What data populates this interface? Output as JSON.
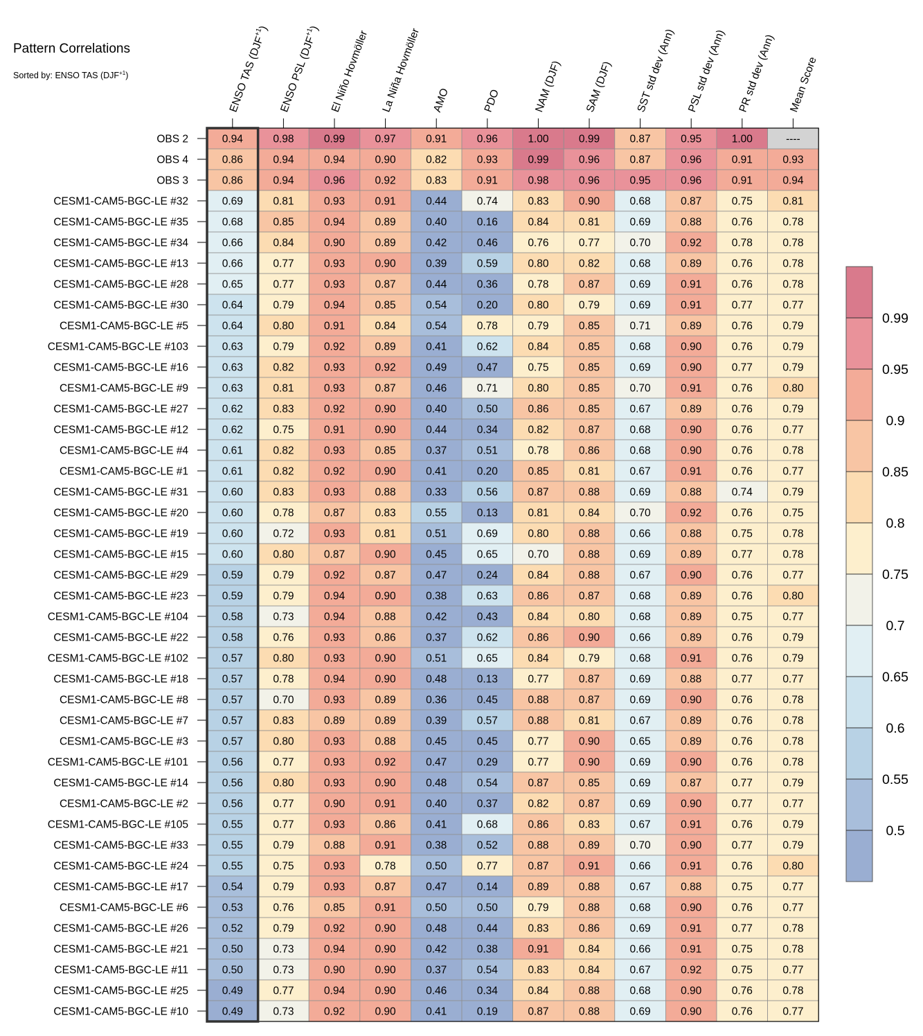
{
  "title": "Pattern Correlations",
  "subtitle": {
    "prefix": "Sorted by: ENSO TAS (DJF",
    "sup": "+1",
    "suffix": ")"
  },
  "chart_data": {
    "type": "heatmap",
    "columns": [
      {
        "label": "ENSO TAS (DJF",
        "sup": "+1",
        "suffix": ")"
      },
      {
        "label": "ENSO PSL (DJF",
        "sup": "+1",
        "suffix": ")"
      },
      {
        "label": "El Niño Hovmöller"
      },
      {
        "label": "La Niña Hovmöller"
      },
      {
        "label": "AMO"
      },
      {
        "label": "PDO"
      },
      {
        "label": "NAM (DJF)"
      },
      {
        "label": "SAM (DJF)"
      },
      {
        "label": "SST std dev (Ann)"
      },
      {
        "label": "PSL std dev (Ann)"
      },
      {
        "label": "PR std dev (Ann)"
      },
      {
        "label": "Mean Score"
      }
    ],
    "highlighted_column": 0,
    "missing_label": "----",
    "rows": [
      {
        "name": "OBS 2",
        "values": [
          "0.94",
          "0.98",
          "0.99",
          "0.97",
          "0.91",
          "0.96",
          "1.00",
          "0.99",
          "0.87",
          "0.95",
          "1.00",
          null
        ]
      },
      {
        "name": "OBS 4",
        "values": [
          "0.86",
          "0.94",
          "0.94",
          "0.90",
          "0.82",
          "0.93",
          "0.99",
          "0.96",
          "0.87",
          "0.96",
          "0.91",
          "0.93"
        ]
      },
      {
        "name": "OBS 3",
        "values": [
          "0.86",
          "0.94",
          "0.96",
          "0.92",
          "0.83",
          "0.91",
          "0.98",
          "0.96",
          "0.95",
          "0.96",
          "0.91",
          "0.94"
        ]
      },
      {
        "name": "CESM1-CAM5-BGC-LE #32",
        "values": [
          "0.69",
          "0.81",
          "0.93",
          "0.91",
          "0.44",
          "0.74",
          "0.83",
          "0.90",
          "0.68",
          "0.87",
          "0.75",
          "0.81"
        ]
      },
      {
        "name": "CESM1-CAM5-BGC-LE #35",
        "values": [
          "0.68",
          "0.85",
          "0.94",
          "0.89",
          "0.40",
          "0.16",
          "0.84",
          "0.81",
          "0.69",
          "0.88",
          "0.76",
          "0.78"
        ]
      },
      {
        "name": "CESM1-CAM5-BGC-LE #34",
        "values": [
          "0.66",
          "0.84",
          "0.90",
          "0.89",
          "0.42",
          "0.46",
          "0.76",
          "0.77",
          "0.70",
          "0.92",
          "0.78",
          "0.78"
        ]
      },
      {
        "name": "CESM1-CAM5-BGC-LE #13",
        "values": [
          "0.66",
          "0.77",
          "0.93",
          "0.90",
          "0.39",
          "0.59",
          "0.80",
          "0.82",
          "0.68",
          "0.89",
          "0.76",
          "0.78"
        ]
      },
      {
        "name": "CESM1-CAM5-BGC-LE #28",
        "values": [
          "0.65",
          "0.77",
          "0.93",
          "0.87",
          "0.44",
          "0.36",
          "0.78",
          "0.87",
          "0.69",
          "0.91",
          "0.76",
          "0.78"
        ]
      },
      {
        "name": "CESM1-CAM5-BGC-LE #30",
        "values": [
          "0.64",
          "0.79",
          "0.94",
          "0.85",
          "0.54",
          "0.20",
          "0.80",
          "0.79",
          "0.69",
          "0.91",
          "0.77",
          "0.77"
        ]
      },
      {
        "name": "CESM1-CAM5-BGC-LE #5",
        "values": [
          "0.64",
          "0.80",
          "0.91",
          "0.84",
          "0.54",
          "0.78",
          "0.79",
          "0.85",
          "0.71",
          "0.89",
          "0.76",
          "0.79"
        ]
      },
      {
        "name": "CESM1-CAM5-BGC-LE #103",
        "values": [
          "0.63",
          "0.79",
          "0.92",
          "0.89",
          "0.41",
          "0.62",
          "0.84",
          "0.85",
          "0.68",
          "0.90",
          "0.76",
          "0.79"
        ]
      },
      {
        "name": "CESM1-CAM5-BGC-LE #16",
        "values": [
          "0.63",
          "0.82",
          "0.93",
          "0.92",
          "0.49",
          "0.47",
          "0.75",
          "0.85",
          "0.69",
          "0.90",
          "0.77",
          "0.79"
        ]
      },
      {
        "name": "CESM1-CAM5-BGC-LE #9",
        "values": [
          "0.63",
          "0.81",
          "0.93",
          "0.87",
          "0.46",
          "0.71",
          "0.80",
          "0.85",
          "0.70",
          "0.91",
          "0.76",
          "0.80"
        ]
      },
      {
        "name": "CESM1-CAM5-BGC-LE #27",
        "values": [
          "0.62",
          "0.83",
          "0.92",
          "0.90",
          "0.40",
          "0.50",
          "0.86",
          "0.85",
          "0.67",
          "0.89",
          "0.76",
          "0.79"
        ]
      },
      {
        "name": "CESM1-CAM5-BGC-LE #12",
        "values": [
          "0.62",
          "0.75",
          "0.91",
          "0.90",
          "0.44",
          "0.34",
          "0.82",
          "0.87",
          "0.68",
          "0.90",
          "0.76",
          "0.77"
        ]
      },
      {
        "name": "CESM1-CAM5-BGC-LE #4",
        "values": [
          "0.61",
          "0.82",
          "0.93",
          "0.85",
          "0.37",
          "0.51",
          "0.78",
          "0.86",
          "0.68",
          "0.90",
          "0.76",
          "0.78"
        ]
      },
      {
        "name": "CESM1-CAM5-BGC-LE #1",
        "values": [
          "0.61",
          "0.82",
          "0.92",
          "0.90",
          "0.41",
          "0.20",
          "0.85",
          "0.81",
          "0.67",
          "0.91",
          "0.76",
          "0.77"
        ]
      },
      {
        "name": "CESM1-CAM5-BGC-LE #31",
        "values": [
          "0.60",
          "0.83",
          "0.93",
          "0.88",
          "0.33",
          "0.56",
          "0.87",
          "0.88",
          "0.69",
          "0.88",
          "0.74",
          "0.79"
        ]
      },
      {
        "name": "CESM1-CAM5-BGC-LE #20",
        "values": [
          "0.60",
          "0.78",
          "0.87",
          "0.83",
          "0.55",
          "0.13",
          "0.81",
          "0.84",
          "0.70",
          "0.92",
          "0.76",
          "0.75"
        ]
      },
      {
        "name": "CESM1-CAM5-BGC-LE #19",
        "values": [
          "0.60",
          "0.72",
          "0.93",
          "0.81",
          "0.51",
          "0.69",
          "0.80",
          "0.88",
          "0.66",
          "0.88",
          "0.75",
          "0.78"
        ]
      },
      {
        "name": "CESM1-CAM5-BGC-LE #15",
        "values": [
          "0.60",
          "0.80",
          "0.87",
          "0.90",
          "0.45",
          "0.65",
          "0.70",
          "0.88",
          "0.69",
          "0.89",
          "0.77",
          "0.78"
        ]
      },
      {
        "name": "CESM1-CAM5-BGC-LE #29",
        "values": [
          "0.59",
          "0.79",
          "0.92",
          "0.87",
          "0.47",
          "0.24",
          "0.84",
          "0.88",
          "0.67",
          "0.90",
          "0.76",
          "0.77"
        ]
      },
      {
        "name": "CESM1-CAM5-BGC-LE #23",
        "values": [
          "0.59",
          "0.79",
          "0.94",
          "0.90",
          "0.38",
          "0.63",
          "0.86",
          "0.87",
          "0.68",
          "0.89",
          "0.76",
          "0.80"
        ]
      },
      {
        "name": "CESM1-CAM5-BGC-LE #104",
        "values": [
          "0.58",
          "0.73",
          "0.94",
          "0.88",
          "0.42",
          "0.43",
          "0.84",
          "0.80",
          "0.68",
          "0.89",
          "0.75",
          "0.77"
        ]
      },
      {
        "name": "CESM1-CAM5-BGC-LE #22",
        "values": [
          "0.58",
          "0.76",
          "0.93",
          "0.86",
          "0.37",
          "0.62",
          "0.86",
          "0.90",
          "0.66",
          "0.89",
          "0.76",
          "0.79"
        ]
      },
      {
        "name": "CESM1-CAM5-BGC-LE #102",
        "values": [
          "0.57",
          "0.80",
          "0.93",
          "0.90",
          "0.51",
          "0.65",
          "0.84",
          "0.79",
          "0.68",
          "0.91",
          "0.76",
          "0.79"
        ]
      },
      {
        "name": "CESM1-CAM5-BGC-LE #18",
        "values": [
          "0.57",
          "0.78",
          "0.94",
          "0.90",
          "0.48",
          "0.13",
          "0.77",
          "0.87",
          "0.69",
          "0.88",
          "0.77",
          "0.77"
        ]
      },
      {
        "name": "CESM1-CAM5-BGC-LE #8",
        "values": [
          "0.57",
          "0.70",
          "0.93",
          "0.89",
          "0.36",
          "0.45",
          "0.88",
          "0.87",
          "0.69",
          "0.90",
          "0.76",
          "0.78"
        ]
      },
      {
        "name": "CESM1-CAM5-BGC-LE #7",
        "values": [
          "0.57",
          "0.83",
          "0.89",
          "0.89",
          "0.39",
          "0.57",
          "0.88",
          "0.81",
          "0.67",
          "0.89",
          "0.76",
          "0.78"
        ]
      },
      {
        "name": "CESM1-CAM5-BGC-LE #3",
        "values": [
          "0.57",
          "0.80",
          "0.93",
          "0.88",
          "0.45",
          "0.45",
          "0.77",
          "0.90",
          "0.65",
          "0.89",
          "0.76",
          "0.78"
        ]
      },
      {
        "name": "CESM1-CAM5-BGC-LE #101",
        "values": [
          "0.56",
          "0.77",
          "0.93",
          "0.92",
          "0.47",
          "0.29",
          "0.77",
          "0.90",
          "0.69",
          "0.90",
          "0.76",
          "0.78"
        ]
      },
      {
        "name": "CESM1-CAM5-BGC-LE #14",
        "values": [
          "0.56",
          "0.80",
          "0.93",
          "0.90",
          "0.48",
          "0.54",
          "0.87",
          "0.85",
          "0.69",
          "0.87",
          "0.77",
          "0.79"
        ]
      },
      {
        "name": "CESM1-CAM5-BGC-LE #2",
        "values": [
          "0.56",
          "0.77",
          "0.90",
          "0.91",
          "0.40",
          "0.37",
          "0.82",
          "0.87",
          "0.69",
          "0.90",
          "0.77",
          "0.77"
        ]
      },
      {
        "name": "CESM1-CAM5-BGC-LE #105",
        "values": [
          "0.55",
          "0.77",
          "0.93",
          "0.86",
          "0.41",
          "0.68",
          "0.86",
          "0.83",
          "0.67",
          "0.91",
          "0.76",
          "0.79"
        ]
      },
      {
        "name": "CESM1-CAM5-BGC-LE #33",
        "values": [
          "0.55",
          "0.79",
          "0.88",
          "0.91",
          "0.38",
          "0.52",
          "0.88",
          "0.89",
          "0.70",
          "0.90",
          "0.77",
          "0.79"
        ]
      },
      {
        "name": "CESM1-CAM5-BGC-LE #24",
        "values": [
          "0.55",
          "0.75",
          "0.93",
          "0.78",
          "0.50",
          "0.77",
          "0.87",
          "0.91",
          "0.66",
          "0.91",
          "0.76",
          "0.80"
        ]
      },
      {
        "name": "CESM1-CAM5-BGC-LE #17",
        "values": [
          "0.54",
          "0.79",
          "0.93",
          "0.87",
          "0.47",
          "0.14",
          "0.89",
          "0.88",
          "0.67",
          "0.88",
          "0.75",
          "0.77"
        ]
      },
      {
        "name": "CESM1-CAM5-BGC-LE #6",
        "values": [
          "0.53",
          "0.76",
          "0.85",
          "0.91",
          "0.50",
          "0.50",
          "0.79",
          "0.88",
          "0.68",
          "0.90",
          "0.76",
          "0.77"
        ]
      },
      {
        "name": "CESM1-CAM5-BGC-LE #26",
        "values": [
          "0.52",
          "0.79",
          "0.92",
          "0.90",
          "0.48",
          "0.44",
          "0.83",
          "0.86",
          "0.69",
          "0.91",
          "0.77",
          "0.78"
        ]
      },
      {
        "name": "CESM1-CAM5-BGC-LE #21",
        "values": [
          "0.50",
          "0.73",
          "0.94",
          "0.90",
          "0.42",
          "0.38",
          "0.91",
          "0.84",
          "0.66",
          "0.91",
          "0.75",
          "0.78"
        ]
      },
      {
        "name": "CESM1-CAM5-BGC-LE #11",
        "values": [
          "0.50",
          "0.73",
          "0.90",
          "0.90",
          "0.37",
          "0.54",
          "0.83",
          "0.84",
          "0.67",
          "0.92",
          "0.75",
          "0.77"
        ]
      },
      {
        "name": "CESM1-CAM5-BGC-LE #25",
        "values": [
          "0.49",
          "0.77",
          "0.94",
          "0.90",
          "0.46",
          "0.34",
          "0.84",
          "0.88",
          "0.68",
          "0.90",
          "0.76",
          "0.78"
        ]
      },
      {
        "name": "CESM1-CAM5-BGC-LE #10",
        "values": [
          "0.49",
          "0.73",
          "0.92",
          "0.90",
          "0.41",
          "0.19",
          "0.87",
          "0.88",
          "0.69",
          "0.90",
          "0.76",
          "0.77"
        ]
      }
    ],
    "colorbar": {
      "levels": [
        0.5,
        0.55,
        0.6,
        0.65,
        0.7,
        0.75,
        0.8,
        0.85,
        0.9,
        0.95,
        0.99
      ],
      "tick_labels": [
        "0.5",
        "0.55",
        "0.6",
        "0.65",
        "0.7",
        "0.75",
        "0.8",
        "0.85",
        "0.9",
        "0.95",
        "0.99"
      ],
      "colors": [
        "#9aaed2",
        "#a8bedb",
        "#b8d2e5",
        "#cde3ee",
        "#e1eff3",
        "#f2f2e9",
        "#fdefcd",
        "#fcdcb2",
        "#f8c5a4",
        "#f3ab98",
        "#e9929a",
        "#d97a8c"
      ],
      "missing_color": "#d3d3d3"
    }
  }
}
